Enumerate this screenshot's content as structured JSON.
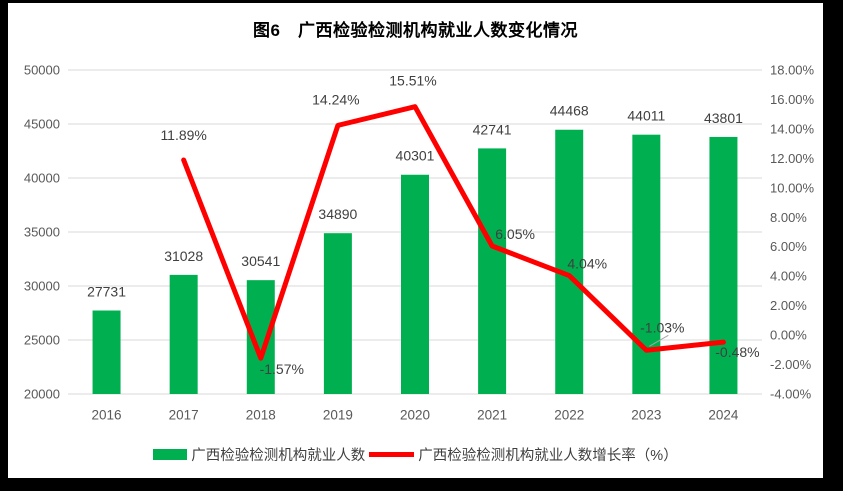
{
  "title": "图6　广西检验检测机构就业人数变化情况",
  "frame": {
    "border_color": "#000000",
    "chart_background": "#ffffff"
  },
  "chart_data": {
    "type": "bar+line",
    "title": "图6　广西检验检测机构就业人数变化情况",
    "categories": [
      "2016",
      "2017",
      "2018",
      "2019",
      "2020",
      "2021",
      "2022",
      "2023",
      "2024"
    ],
    "series": [
      {
        "name": "广西检验检测机构就业人数",
        "type": "bar",
        "axis": "left",
        "color": "#00B050",
        "values": [
          27731,
          31028,
          30541,
          34890,
          40301,
          42741,
          44468,
          44011,
          43801
        ],
        "labels": [
          "27731",
          "31028",
          "30541",
          "34890",
          "40301",
          "42741",
          "44468",
          "44011",
          "43801"
        ]
      },
      {
        "name": "广西检验检测机构就业人数增长率（%）",
        "type": "line",
        "axis": "right",
        "color": "#FF0000",
        "values": [
          null,
          11.89,
          -1.57,
          14.24,
          15.51,
          6.05,
          4.04,
          -1.03,
          -0.48
        ],
        "labels": [
          null,
          "11.89%",
          "-1.57%",
          "14.24%",
          "15.51%",
          "6.05%",
          "4.04%",
          "-1.03%",
          "-0.48%"
        ]
      }
    ],
    "left_axis": {
      "min": 20000,
      "max": 50000,
      "step": 5000,
      "ticks": [
        "20000",
        "25000",
        "30000",
        "35000",
        "40000",
        "45000",
        "50000"
      ]
    },
    "right_axis": {
      "min": -4,
      "max": 18,
      "step": 2,
      "ticks": [
        "-4.00%",
        "-2.00%",
        "0.00%",
        "2.00%",
        "4.00%",
        "6.00%",
        "8.00%",
        "10.00%",
        "12.00%",
        "14.00%",
        "16.00%",
        "18.00%"
      ]
    },
    "grid": true,
    "gridline_color": "#D9D9D9",
    "axis_text_color": "#595959",
    "data_label_color": "#404040",
    "legend_position": "bottom"
  },
  "legend": {
    "items": [
      {
        "label": "广西检验检测机构就业人数",
        "swatch": "bar",
        "color": "#00B050"
      },
      {
        "label": "广西检验检测机构就业人数增长率（%）",
        "swatch": "line",
        "color": "#FF0000"
      }
    ]
  }
}
